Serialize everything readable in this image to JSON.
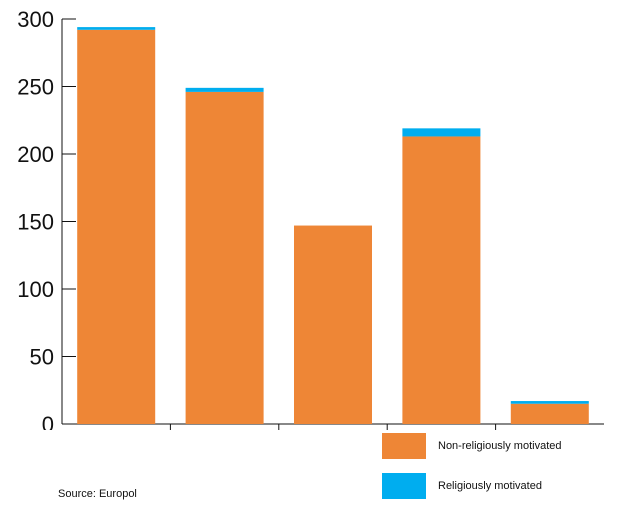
{
  "chart_data": {
    "type": "bar",
    "stacked": true,
    "categories": [
      "",
      "",
      "",
      "",
      ""
    ],
    "series": [
      {
        "name": "Non-religiously motivated",
        "color": "#ee8636",
        "values": [
          292,
          246,
          147,
          213,
          15
        ]
      },
      {
        "name": "Religiously motivated",
        "color": "#00adef",
        "values": [
          2,
          3,
          0,
          6,
          2
        ]
      }
    ],
    "y_ticks": [
      "0",
      "50",
      "100",
      "150",
      "200",
      "250",
      "300"
    ],
    "ylim": [
      0,
      300
    ],
    "grid": false,
    "legend_position": "bottom-right",
    "title": "",
    "xlabel": "",
    "ylabel": ""
  },
  "source": "Source: Europol"
}
